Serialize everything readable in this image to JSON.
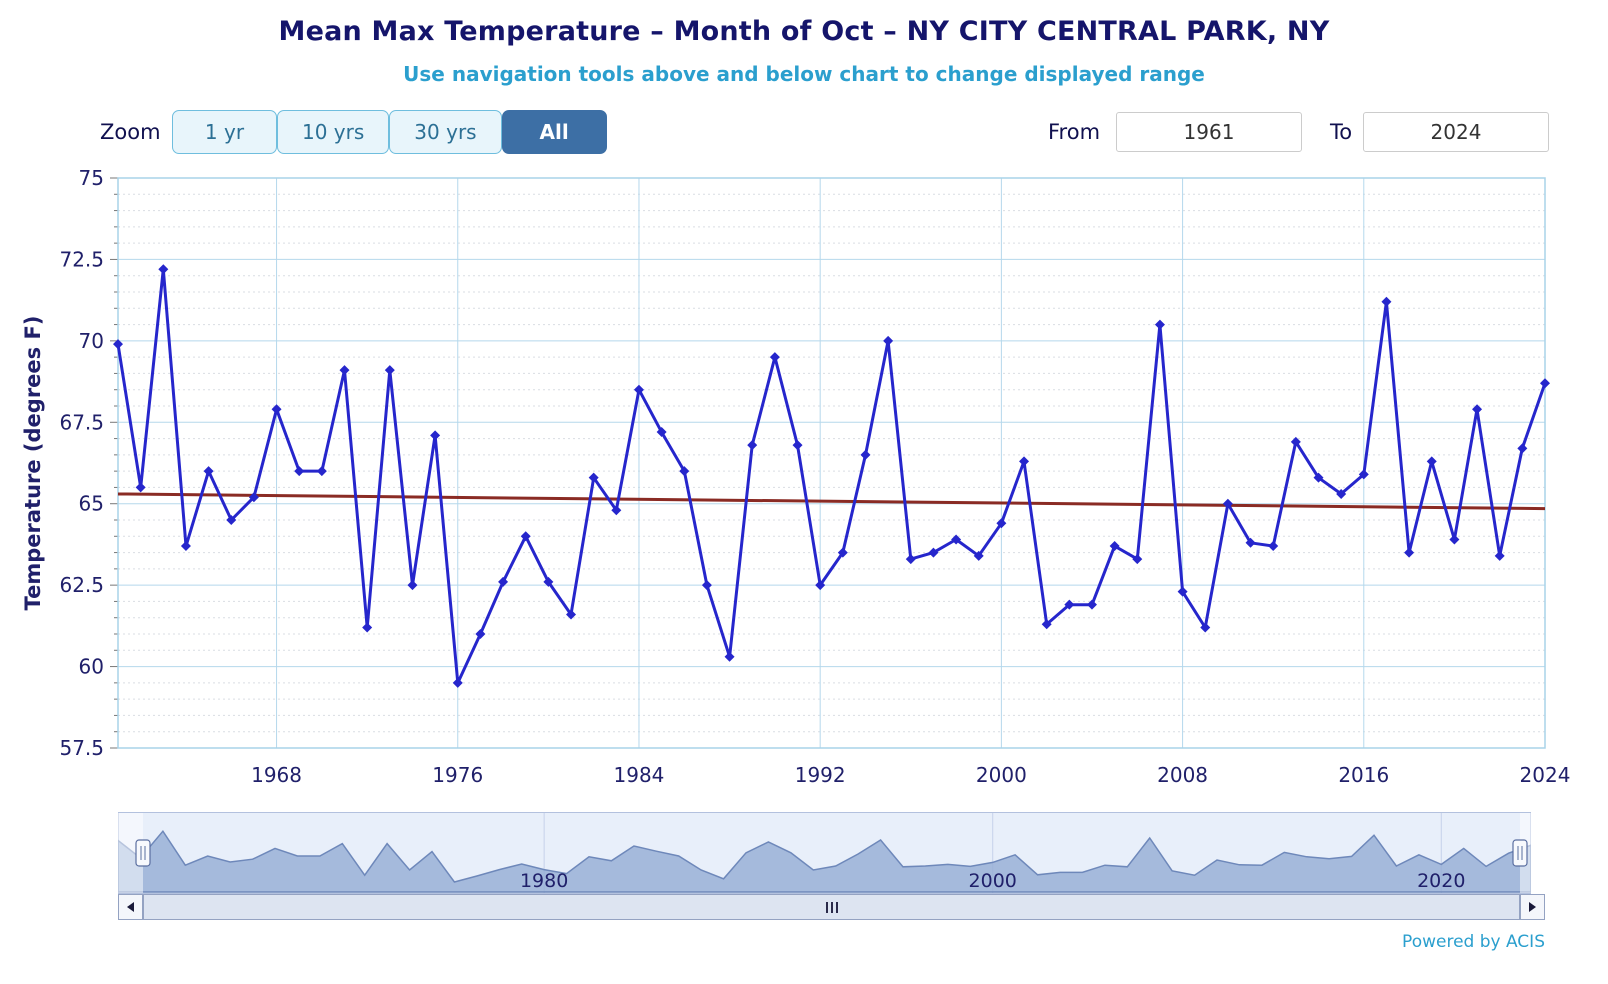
{
  "controls": {
    "zoom_label": "Zoom",
    "zoom_buttons": [
      {
        "label": "1 yr",
        "selected": false
      },
      {
        "label": "10 yrs",
        "selected": false
      },
      {
        "label": "30 yrs",
        "selected": false
      },
      {
        "label": "All",
        "selected": true
      }
    ],
    "from_label": "From",
    "from_value": "1961",
    "to_label": "To",
    "to_value": "2024"
  },
  "chart_data": {
    "type": "line",
    "title": "Mean Max Temperature – Month of Oct – NY CITY CENTRAL PARK, NY",
    "subtitle": "Use navigation tools above and below chart to change displayed range",
    "xlabel": "",
    "ylabel": "Temperature (degrees F)",
    "ylim": [
      57.5,
      75
    ],
    "yticks": [
      57.5,
      60,
      62.5,
      65,
      67.5,
      70,
      72.5,
      75
    ],
    "ytick_labels": [
      "57.5",
      "60",
      "62.5",
      "65",
      "67.5",
      "70",
      "72.5",
      "75"
    ],
    "xticks": [
      1968,
      1976,
      1984,
      1992,
      2000,
      2008,
      2016,
      2024
    ],
    "x_start": 1961,
    "x_end": 2024,
    "x_step": 1,
    "grid": true,
    "legend": false,
    "series": [
      {
        "name": "Mean Max Temperature",
        "color": "#2626cc",
        "marker": "diamond",
        "values": [
          69.9,
          65.5,
          72.2,
          63.7,
          66.0,
          64.5,
          65.2,
          67.9,
          66.0,
          66.0,
          69.1,
          61.2,
          69.1,
          62.5,
          67.1,
          59.5,
          61.0,
          62.6,
          64.0,
          62.6,
          61.6,
          65.8,
          64.8,
          68.5,
          67.2,
          66.0,
          62.5,
          60.3,
          66.8,
          69.5,
          66.8,
          62.5,
          63.5,
          66.5,
          70.0,
          63.3,
          63.5,
          63.9,
          63.4,
          64.4,
          66.3,
          61.3,
          61.9,
          61.9,
          63.7,
          63.3,
          70.5,
          62.3,
          61.2,
          65.0,
          63.8,
          63.7,
          66.9,
          65.8,
          65.3,
          65.9,
          71.2,
          63.5,
          66.3,
          63.9,
          67.9,
          63.4,
          66.7,
          68.7
        ]
      }
    ],
    "trend": {
      "name": "Trend",
      "color": "#8a2b24",
      "start_value": 65.3,
      "end_value": 64.85
    },
    "colors": {
      "grid_major": "#b5d8ec",
      "grid_minor": "#d9dde3",
      "plot_border": "#a9d3e9",
      "axis_text": "#20206a",
      "tick_mark": "#777777"
    }
  },
  "navigator": {
    "ticks": [
      {
        "year": 1980,
        "label": "1980"
      },
      {
        "year": 2000,
        "label": "2000"
      },
      {
        "year": 2020,
        "label": "2020"
      }
    ],
    "colors": {
      "background": "#e8effa",
      "border": "#b3c1de",
      "gridline": "#c6d1ea",
      "series_fill": "#93add5",
      "series_line": "#6e88ba",
      "handle_stroke": "#5a6ea0"
    }
  },
  "footer": {
    "credit": "Powered by ACIS"
  }
}
